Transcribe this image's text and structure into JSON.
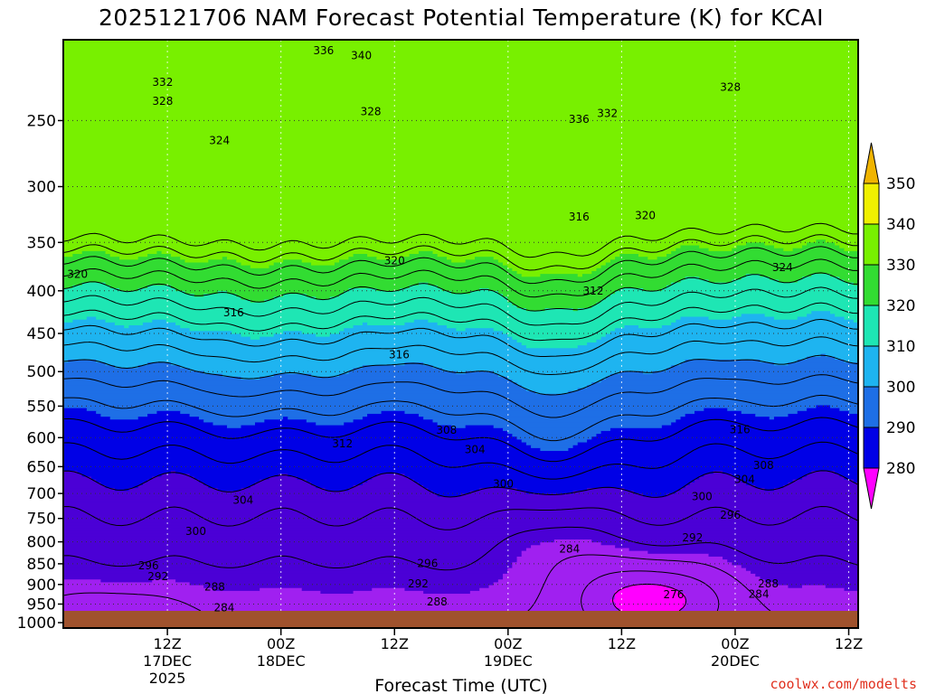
{
  "chart_data": {
    "type": "contour",
    "title": "2025121706 NAM Forecast Potential Temperature (K) for KCAI",
    "xlabel": "Forecast Time (UTC)",
    "ylabel": "",
    "y_scale": "log",
    "y_inverted": true,
    "ylim": [
      200,
      1015
    ],
    "y_ticks": [
      250,
      300,
      350,
      400,
      450,
      500,
      550,
      600,
      650,
      700,
      750,
      800,
      850,
      900,
      950,
      1000
    ],
    "x_range_hours": [
      -5,
      79
    ],
    "x_ticks": [
      {
        "hour": 6,
        "label": "12Z",
        "date": "17DEC",
        "year": "2025"
      },
      {
        "hour": 18,
        "label": "00Z",
        "date": "18DEC",
        "year": ""
      },
      {
        "hour": 30,
        "label": "12Z",
        "date": "",
        "year": ""
      },
      {
        "hour": 42,
        "label": "00Z",
        "date": "19DEC",
        "year": ""
      },
      {
        "hour": 54,
        "label": "12Z",
        "date": "",
        "year": ""
      },
      {
        "hour": 66,
        "label": "00Z",
        "date": "20DEC",
        "year": ""
      },
      {
        "hour": 78,
        "label": "12Z",
        "date": "",
        "year": ""
      }
    ],
    "grid": true,
    "colorbar": {
      "levels": [
        280,
        290,
        300,
        310,
        320,
        330,
        340,
        350
      ],
      "labels": [
        "280",
        "290",
        "300",
        "310",
        "320",
        "330",
        "340",
        "350"
      ],
      "colors": [
        "#ff00ff",
        "#a020f0",
        "#4b00d6",
        "#0000e6",
        "#1e6fe6",
        "#1eb4f0",
        "#1ee6b4",
        "#32dc32",
        "#78f000",
        "#f0f000",
        "#f0b400"
      ]
    },
    "ground_color": "#a0522d",
    "contour_labels": [
      {
        "value": "336",
        "hour": 22.5,
        "p": 206
      },
      {
        "value": "340",
        "hour": 26.5,
        "p": 209
      },
      {
        "value": "332",
        "hour": 5.5,
        "p": 225
      },
      {
        "value": "328",
        "hour": 5.5,
        "p": 237
      },
      {
        "value": "328",
        "hour": 27.5,
        "p": 244
      },
      {
        "value": "336",
        "hour": 49.5,
        "p": 249
      },
      {
        "value": "332",
        "hour": 52.5,
        "p": 245
      },
      {
        "value": "328",
        "hour": 65.5,
        "p": 228
      },
      {
        "value": "324",
        "hour": 11.5,
        "p": 264
      },
      {
        "value": "316",
        "hour": 49.5,
        "p": 326
      },
      {
        "value": "320",
        "hour": 56.5,
        "p": 325
      },
      {
        "value": "320",
        "hour": 30,
        "p": 368
      },
      {
        "value": "324",
        "hour": 71,
        "p": 375
      },
      {
        "value": "320",
        "hour": -3.5,
        "p": 382
      },
      {
        "value": "312",
        "hour": 51,
        "p": 400
      },
      {
        "value": "316",
        "hour": 13,
        "p": 425
      },
      {
        "value": "316",
        "hour": 30.5,
        "p": 477
      },
      {
        "value": "308",
        "hour": 35.5,
        "p": 588
      },
      {
        "value": "312",
        "hour": 24.5,
        "p": 610
      },
      {
        "value": "316",
        "hour": 66.5,
        "p": 587
      },
      {
        "value": "304",
        "hour": 38.5,
        "p": 620
      },
      {
        "value": "308",
        "hour": 69,
        "p": 648
      },
      {
        "value": "304",
        "hour": 67,
        "p": 673
      },
      {
        "value": "300",
        "hour": 41.5,
        "p": 682
      },
      {
        "value": "304",
        "hour": 14,
        "p": 713
      },
      {
        "value": "300",
        "hour": 62.5,
        "p": 706
      },
      {
        "value": "296",
        "hour": 65.5,
        "p": 743
      },
      {
        "value": "300",
        "hour": 9,
        "p": 777
      },
      {
        "value": "292",
        "hour": 61.5,
        "p": 791
      },
      {
        "value": "284",
        "hour": 48.5,
        "p": 816
      },
      {
        "value": "296",
        "hour": 4,
        "p": 855
      },
      {
        "value": "296",
        "hour": 33.5,
        "p": 849
      },
      {
        "value": "292",
        "hour": 5,
        "p": 880
      },
      {
        "value": "292",
        "hour": 32.5,
        "p": 898
      },
      {
        "value": "288",
        "hour": 11,
        "p": 906
      },
      {
        "value": "288",
        "hour": 69.5,
        "p": 898
      },
      {
        "value": "284",
        "hour": 68.5,
        "p": 924
      },
      {
        "value": "276",
        "hour": 59.5,
        "p": 926
      },
      {
        "value": "288",
        "hour": 34.5,
        "p": 944
      },
      {
        "value": "284",
        "hour": 12,
        "p": 960
      }
    ]
  },
  "credit": "coolwx.com/modelts"
}
